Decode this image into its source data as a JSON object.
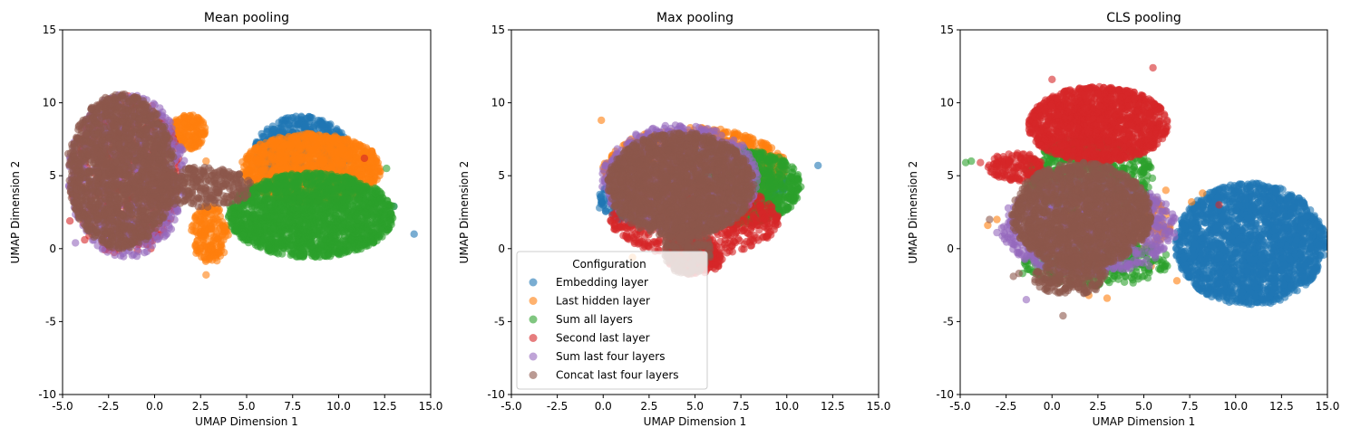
{
  "chart_data": [
    {
      "type": "scatter",
      "title": "Mean pooling",
      "xlabel": "UMAP Dimension 1",
      "ylabel": "UMAP Dimension 2",
      "xlim": [
        -5,
        15
      ],
      "ylim": [
        -10,
        15
      ],
      "xticks": [
        "-5.0",
        "-2.5",
        "0.0",
        "2.5",
        "5.0",
        "7.5",
        "10.0",
        "12.5",
        "15.0"
      ],
      "yticks": [
        "-10",
        "-5",
        "0",
        "5",
        "10",
        "15"
      ],
      "series": [
        {
          "name": "Embedding layer",
          "clusters": [
            {
              "cx": 8.0,
              "cy": 6.5,
              "rx": 2.6,
              "ry": 2.6,
              "n": 700
            }
          ],
          "extra": [
            [
              14.1,
              1.0
            ],
            [
              13.0,
              2.9
            ]
          ]
        },
        {
          "name": "Last hidden layer",
          "clusters": [
            {
              "cx": 8.5,
              "cy": 5.5,
              "rx": 3.8,
              "ry": 2.4,
              "n": 1400
            },
            {
              "cx": 1.8,
              "cy": 8.0,
              "rx": 1.0,
              "ry": 1.2,
              "n": 200
            },
            {
              "cx": 3.0,
              "cy": 1.0,
              "rx": 1.0,
              "ry": 2.0,
              "n": 200
            }
          ],
          "extra": [
            [
              2.8,
              -1.8
            ],
            [
              11.8,
              6.2
            ],
            [
              2.8,
              6.0
            ]
          ]
        },
        {
          "name": "Sum all layers",
          "clusters": [
            {
              "cx": 8.5,
              "cy": 2.3,
              "rx": 4.5,
              "ry": 2.9,
              "n": 2000
            }
          ],
          "extra": [
            [
              13.0,
              2.9
            ],
            [
              11.4,
              1.9
            ],
            [
              12.6,
              5.5
            ]
          ]
        },
        {
          "name": "Second last layer",
          "clusters": [
            {
              "cx": -1.6,
              "cy": 5.0,
              "rx": 3.0,
              "ry": 5.5,
              "n": 500
            }
          ],
          "extra": [
            [
              -4.6,
              1.9
            ],
            [
              -3.8,
              0.6
            ],
            [
              11.4,
              6.2
            ],
            [
              -0.2,
              0.0
            ]
          ]
        },
        {
          "name": "Sum last four layers",
          "clusters": [
            {
              "cx": -1.5,
              "cy": 5.0,
              "rx": 3.2,
              "ry": 5.6,
              "n": 700
            }
          ],
          "extra": [
            [
              -3.3,
              0.6
            ],
            [
              -4.3,
              0.4
            ]
          ]
        },
        {
          "name": "Concat last four layers",
          "clusters": [
            {
              "cx": -1.8,
              "cy": 5.3,
              "rx": 2.9,
              "ry": 5.3,
              "n": 1600
            },
            {
              "cx": 2.5,
              "cy": 4.2,
              "rx": 2.8,
              "ry": 1.4,
              "n": 300
            }
          ],
          "extra": [
            [
              -4.7,
              6.5
            ],
            [
              -4.5,
              5.0
            ]
          ]
        }
      ]
    },
    {
      "type": "scatter",
      "title": "Max pooling",
      "xlabel": "UMAP Dimension 1",
      "ylabel": "UMAP Dimension 2",
      "xlim": [
        -5,
        15
      ],
      "ylim": [
        -10,
        15
      ],
      "xticks": [
        "-5.0",
        "-2.5",
        "0.0",
        "2.5",
        "5.0",
        "7.5",
        "10.0",
        "12.5",
        "15.0"
      ],
      "yticks": [
        "-10",
        "-5",
        "0",
        "5",
        "10",
        "15"
      ],
      "series": [
        {
          "name": "Embedding layer",
          "clusters": [
            {
              "cx": 2.2,
              "cy": 3.5,
              "rx": 2.4,
              "ry": 1.9,
              "n": 500
            },
            {
              "cx": 7.0,
              "cy": 4.6,
              "rx": 3.0,
              "ry": 2.0,
              "n": 300
            }
          ],
          "extra": [
            [
              11.7,
              5.7
            ],
            [
              -0.2,
              2.8
            ]
          ]
        },
        {
          "name": "Last hidden layer",
          "clusters": [
            {
              "cx": 5.0,
              "cy": 5.5,
              "rx": 5.0,
              "ry": 2.8,
              "n": 1200
            }
          ],
          "extra": [
            [
              -0.1,
              8.8
            ],
            [
              1.6,
              -0.6
            ]
          ]
        },
        {
          "name": "Sum all layers",
          "clusters": [
            {
              "cx": 7.0,
              "cy": 4.3,
              "rx": 3.8,
              "ry": 2.7,
              "n": 1300
            }
          ],
          "extra": []
        },
        {
          "name": "Second last layer",
          "clusters": [
            {
              "cx": 5.0,
              "cy": 2.0,
              "rx": 4.6,
              "ry": 2.5,
              "n": 700
            },
            {
              "cx": 5.0,
              "cy": -0.6,
              "rx": 1.5,
              "ry": 1.2,
              "n": 200
            }
          ],
          "extra": []
        },
        {
          "name": "Sum last four layers",
          "clusters": [
            {
              "cx": 4.2,
              "cy": 4.8,
              "rx": 4.3,
              "ry": 3.7,
              "n": 1100
            }
          ],
          "extra": []
        },
        {
          "name": "Concat last four layers",
          "clusters": [
            {
              "cx": 4.2,
              "cy": 4.4,
              "rx": 4.0,
              "ry": 3.6,
              "n": 1900
            },
            {
              "cx": 4.6,
              "cy": 0.0,
              "rx": 1.3,
              "ry": 1.8,
              "n": 200
            }
          ],
          "extra": []
        }
      ]
    },
    {
      "type": "scatter",
      "title": "CLS pooling",
      "xlabel": "UMAP Dimension 1",
      "ylabel": "UMAP Dimension 2",
      "xlim": [
        -5,
        15
      ],
      "ylim": [
        -10,
        15
      ],
      "xticks": [
        "-5.0",
        "-2.5",
        "0.0",
        "2.5",
        "5.0",
        "7.5",
        "10.0",
        "12.5",
        "15.0"
      ],
      "yticks": [
        "-10",
        "-5",
        "0",
        "5",
        "10",
        "15"
      ],
      "series": [
        {
          "name": "Embedding layer",
          "clusters": [
            {
              "cx": 10.8,
              "cy": 0.3,
              "rx": 4.1,
              "ry": 4.2,
              "n": 2200
            }
          ],
          "extra": [
            [
              14.9,
              0.1
            ]
          ]
        },
        {
          "name": "Last hidden layer",
          "clusters": [
            {
              "cx": 3.5,
              "cy": 1.8,
              "rx": 3.0,
              "ry": 2.2,
              "n": 300
            }
          ],
          "extra": [
            [
              8.2,
              3.8
            ],
            [
              7.6,
              3.2
            ],
            [
              6.2,
              4.0
            ],
            [
              -3.5,
              1.6
            ],
            [
              -3.0,
              2.0
            ],
            [
              3.0,
              -3.4
            ],
            [
              5.4,
              -1.2
            ],
            [
              2.0,
              -3.2
            ],
            [
              6.8,
              -2.2
            ]
          ]
        },
        {
          "name": "Sum all layers",
          "clusters": [
            {
              "cx": 2.0,
              "cy": 5.0,
              "rx": 3.5,
              "ry": 2.6,
              "n": 600
            },
            {
              "cx": 2.5,
              "cy": -1.0,
              "rx": 4.0,
              "ry": 1.6,
              "n": 300
            }
          ],
          "extra": [
            [
              -4.4,
              6.0
            ],
            [
              -4.7,
              5.9
            ],
            [
              5.2,
              5.0
            ],
            [
              -1.6,
              -1.7
            ]
          ]
        },
        {
          "name": "Second last layer",
          "clusters": [
            {
              "cx": 2.5,
              "cy": 8.5,
              "rx": 3.8,
              "ry": 2.6,
              "n": 1500
            },
            {
              "cx": -2.0,
              "cy": 5.6,
              "rx": 1.5,
              "ry": 1.0,
              "n": 150
            }
          ],
          "extra": [
            [
              5.5,
              12.4
            ],
            [
              0.0,
              11.6
            ],
            [
              0.3,
              10.3
            ],
            [
              9.1,
              3.0
            ],
            [
              -3.9,
              5.9
            ],
            [
              0.5,
              -1.5
            ]
          ]
        },
        {
          "name": "Sum last four layers",
          "clusters": [
            {
              "cx": 2.0,
              "cy": 1.5,
              "rx": 4.8,
              "ry": 3.3,
              "n": 900
            }
          ],
          "extra": [
            [
              -1.4,
              -3.5
            ],
            [
              -3.0,
              1.1
            ],
            [
              5.3,
              -1.2
            ]
          ]
        },
        {
          "name": "Concat last four layers",
          "clusters": [
            {
              "cx": 1.6,
              "cy": 2.3,
              "rx": 3.8,
              "ry": 3.6,
              "n": 1700
            },
            {
              "cx": 1.0,
              "cy": -2.0,
              "rx": 2.0,
              "ry": 1.2,
              "n": 200
            }
          ],
          "extra": [
            [
              -3.4,
              2.0
            ],
            [
              0.6,
              -4.6
            ],
            [
              -2.1,
              -1.9
            ],
            [
              -1.8,
              -1.7
            ]
          ]
        }
      ]
    }
  ],
  "legend": {
    "title": "Configuration",
    "placement": "lower-left of Max pooling panel",
    "items": [
      {
        "label": "Embedding layer",
        "color": "#1f77b4"
      },
      {
        "label": "Last hidden layer",
        "color": "#ff7f0e"
      },
      {
        "label": "Sum all layers",
        "color": "#2ca02c"
      },
      {
        "label": "Second last layer",
        "color": "#d62728"
      },
      {
        "label": "Sum last four layers",
        "color": "#9467bd"
      },
      {
        "label": "Concat last four layers",
        "color": "#8c564b"
      }
    ]
  },
  "series_colors": [
    "#1f77b4",
    "#ff7f0e",
    "#2ca02c",
    "#d62728",
    "#9467bd",
    "#8c564b"
  ]
}
